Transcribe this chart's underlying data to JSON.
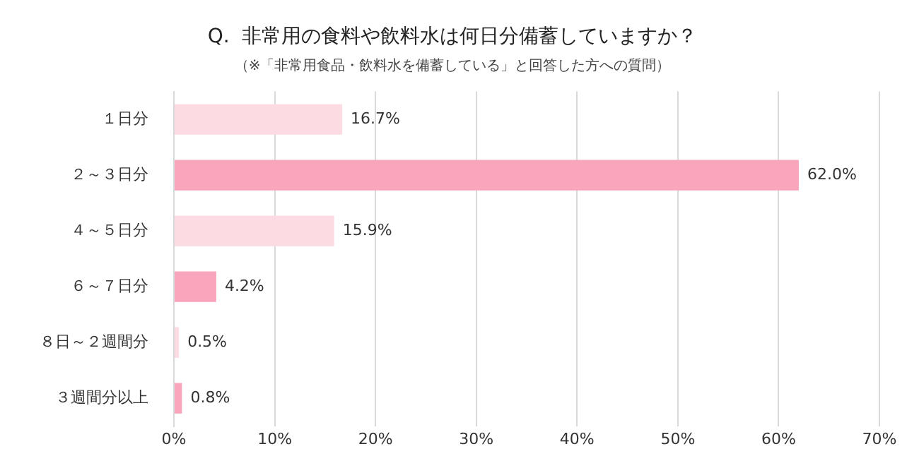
{
  "chart_data": {
    "type": "bar",
    "orientation": "horizontal",
    "title": "Q.  非常用の食料や飲料水は何日分備蓄していますか？",
    "subtitle": "（※「非常用食品・飲料水を備蓄している」と回答した方への質問）",
    "categories": [
      "１日分",
      "２～３日分",
      "４～５日分",
      "６～７日分",
      "８日～２週間分",
      "３週間分以上"
    ],
    "values": [
      16.7,
      62.0,
      15.9,
      4.2,
      0.5,
      0.8
    ],
    "colors": [
      "#fddbe3",
      "#f9a6bd",
      "#fddbe3",
      "#f9a6bd",
      "#fddbe3",
      "#f9a6bd"
    ],
    "value_labels": [
      "16.7%",
      "62.0%",
      "15.9%",
      "4.2%",
      "0.5%",
      "0.8%"
    ],
    "xlim": [
      0,
      70
    ],
    "xticks": [
      {
        "value": 0,
        "label": "0%"
      },
      {
        "value": 10,
        "label": "10%"
      },
      {
        "value": 20,
        "label": "20%"
      },
      {
        "value": 30,
        "label": "30%"
      },
      {
        "value": 40,
        "label": "40%"
      },
      {
        "value": 50,
        "label": "50%"
      },
      {
        "value": 60,
        "label": "60%"
      },
      {
        "value": 70,
        "label": "70%"
      }
    ],
    "grid": "x",
    "legend": false
  }
}
